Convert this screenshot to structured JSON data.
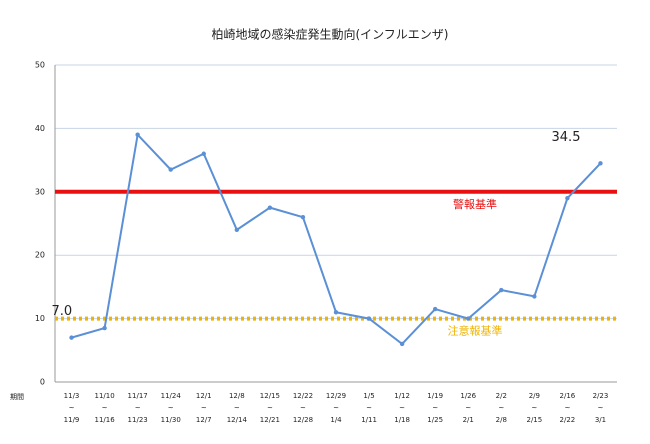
{
  "chart_data": {
    "type": "line",
    "title": "柏崎地域の感染症発生動向(インフルエンザ)",
    "x_label": "期間",
    "categories": [
      [
        "11/3",
        "~",
        "11/9"
      ],
      [
        "11/10",
        "~",
        "11/16"
      ],
      [
        "11/17",
        "~",
        "11/23"
      ],
      [
        "11/24",
        "~",
        "11/30"
      ],
      [
        "12/1",
        "~",
        "12/7"
      ],
      [
        "12/8",
        "~",
        "12/14"
      ],
      [
        "12/15",
        "~",
        "12/21"
      ],
      [
        "12/22",
        "~",
        "12/28"
      ],
      [
        "12/29",
        "~",
        "1/4"
      ],
      [
        "1/5",
        "~",
        "1/11"
      ],
      [
        "1/12",
        "~",
        "1/18"
      ],
      [
        "1/19",
        "~",
        "1/25"
      ],
      [
        "1/26",
        "~",
        "2/1"
      ],
      [
        "2/2",
        "~",
        "2/8"
      ],
      [
        "2/9",
        "~",
        "2/15"
      ],
      [
        "2/16",
        "~",
        "2/22"
      ],
      [
        "2/23",
        "~",
        "3/1"
      ]
    ],
    "values": [
      7.0,
      8.5,
      39,
      33.5,
      36,
      24,
      27.5,
      26,
      11,
      10,
      6,
      11.5,
      10,
      14.5,
      13.5,
      29,
      34.5
    ],
    "value_labels": [
      "7.0",
      null,
      null,
      null,
      null,
      null,
      null,
      null,
      null,
      null,
      null,
      null,
      null,
      null,
      null,
      null,
      "34.5"
    ],
    "color": "#5b8fd6",
    "ylim": [
      0,
      50
    ],
    "yticks": [
      0,
      10,
      20,
      30,
      40,
      50
    ],
    "grid": true,
    "reference_lines": [
      {
        "value": 30,
        "label": "警報基準",
        "color": "#e81010",
        "style": "solid"
      },
      {
        "value": 10,
        "label": "注意報基準",
        "color": "#f0b400",
        "style": "dotted"
      }
    ]
  }
}
